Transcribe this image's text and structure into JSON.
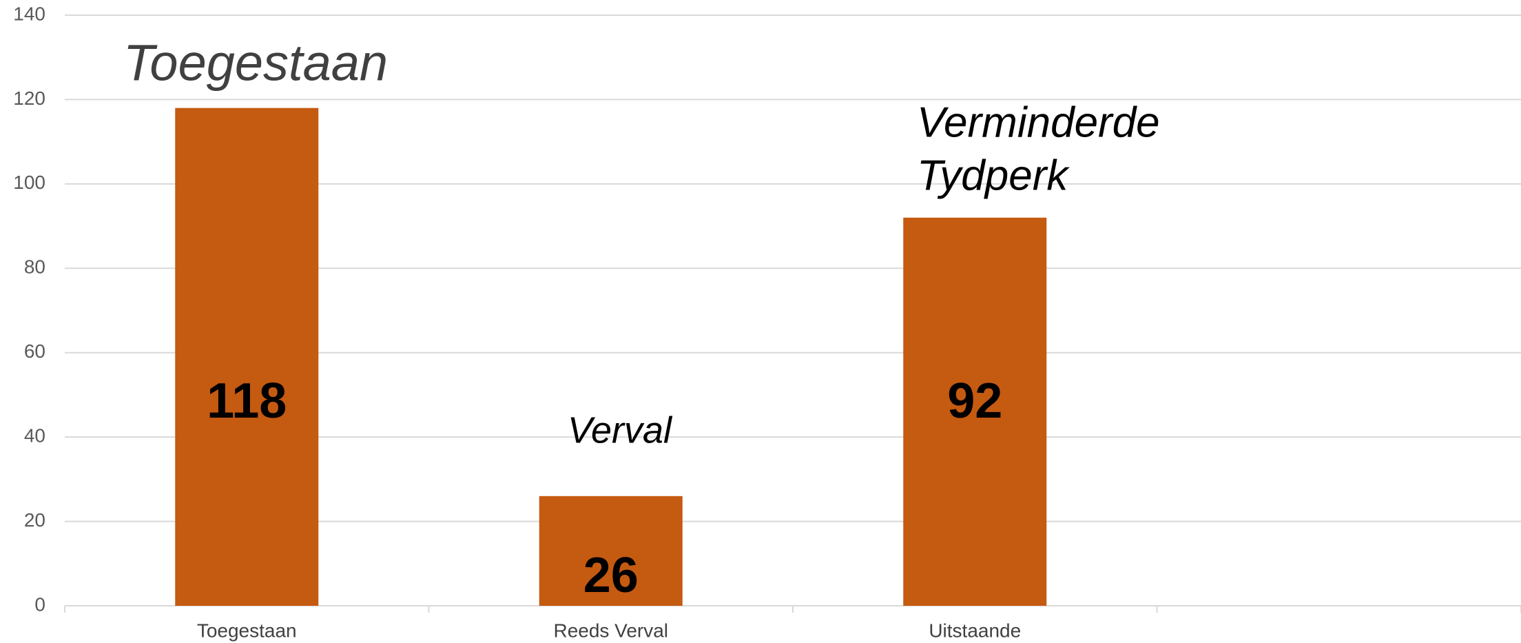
{
  "chart_data": {
    "type": "bar",
    "categories": [
      "Toegestaan",
      "Reeds Verval",
      "Uitstaande",
      null
    ],
    "values": [
      118,
      26,
      92,
      null
    ],
    "color": "#c55a11",
    "ylim": [
      0,
      140
    ],
    "yticks": [
      0,
      20,
      40,
      60,
      80,
      100,
      120,
      140
    ],
    "grid": true,
    "annotations": [
      {
        "text": [
          "Toegestaan"
        ]
      },
      {
        "text": [
          "Verval"
        ]
      },
      {
        "text": [
          "Verminderde",
          "Tydperk"
        ]
      }
    ]
  }
}
